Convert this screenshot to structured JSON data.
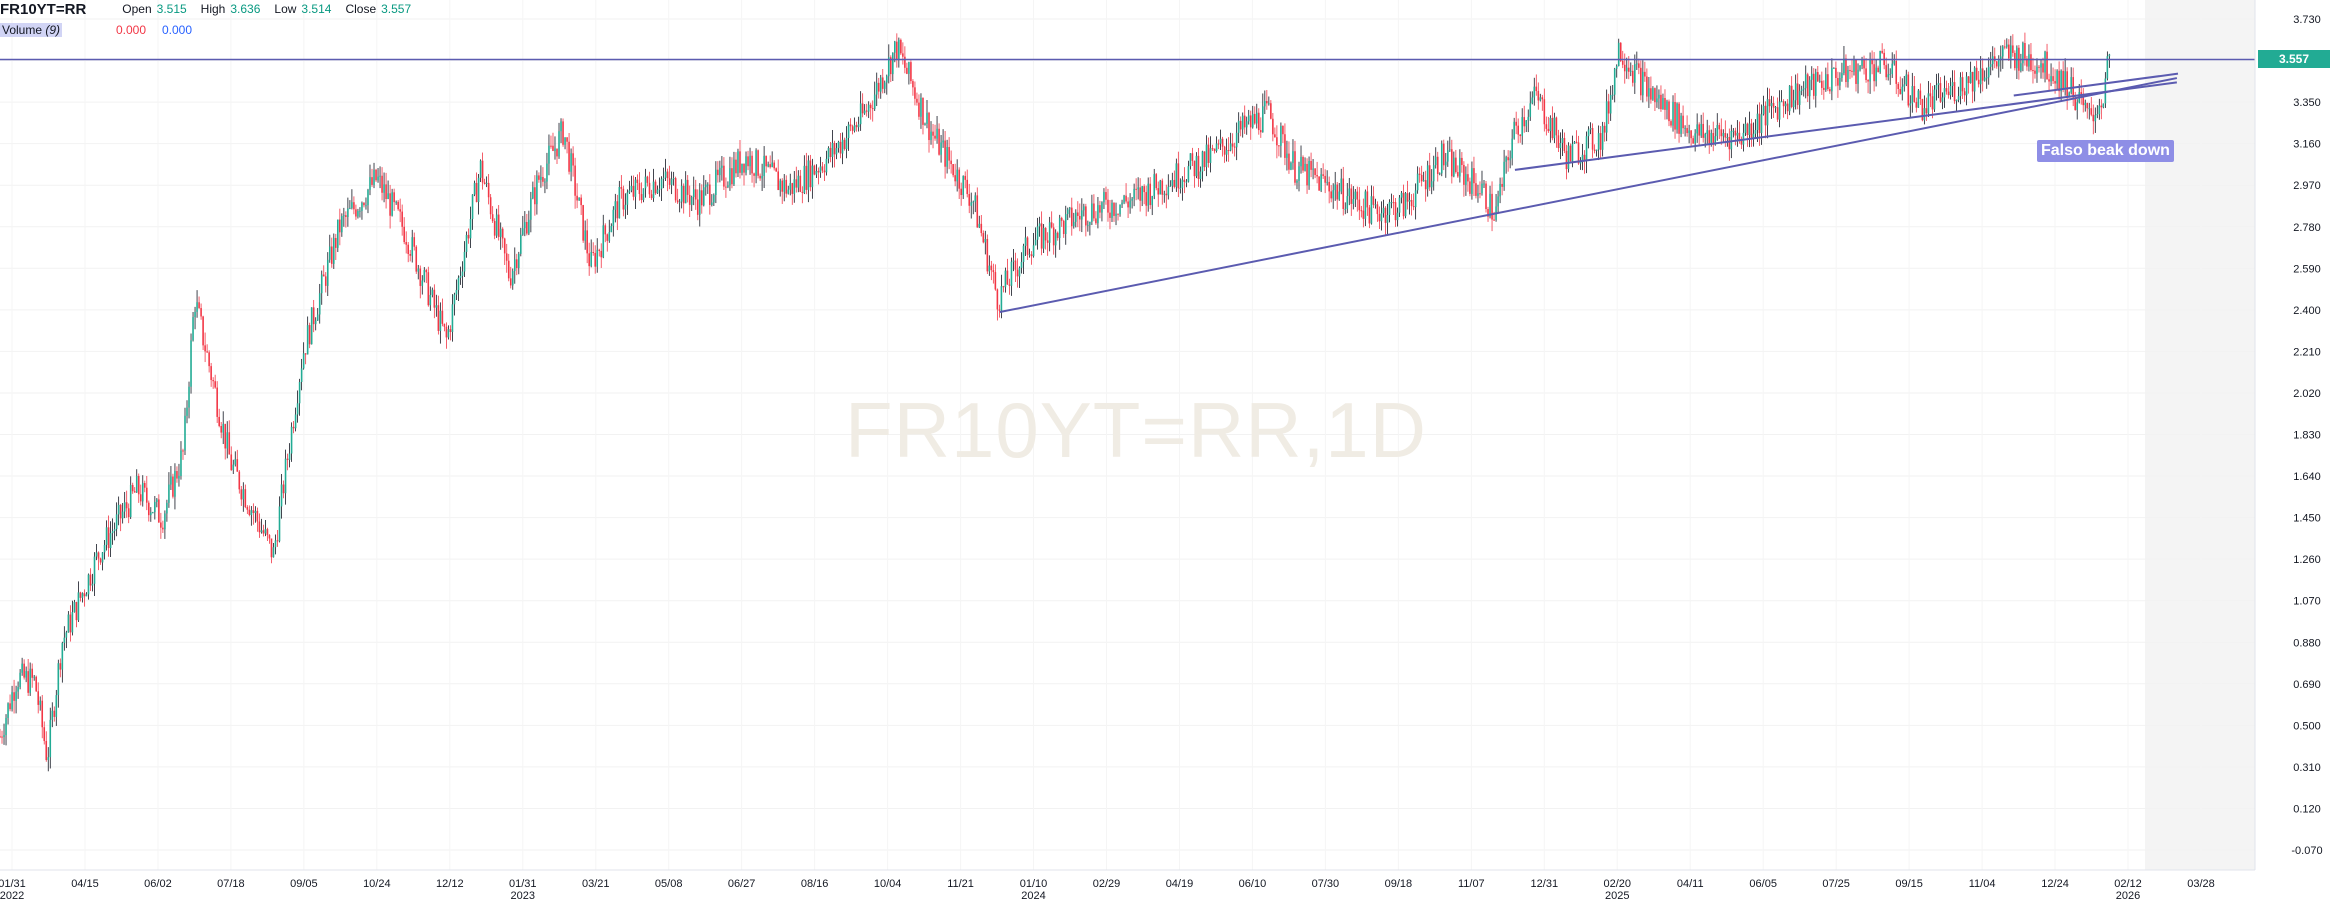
{
  "legend": {
    "symbol": "FR10YT=RR",
    "open_label": "Open",
    "open_value": "3.515",
    "high_label": "High",
    "high_value": "3.636",
    "low_label": "Low",
    "low_value": "3.514",
    "close_label": "Close",
    "close_value": "3.557"
  },
  "volume": {
    "label": "Volume",
    "param": "(9)",
    "value1": "0.000",
    "value2": "0.000"
  },
  "price_badge": "3.557",
  "watermark": "FR10YT=RR,1D",
  "annotation": "Falso beak down",
  "colors": {
    "up": "#22ab94",
    "down": "#f23645",
    "wick_dark": "#131722",
    "trendline": "#5b5bb0",
    "badge": "#22ab94"
  },
  "chart_data": {
    "type": "candlestick",
    "title": "FR10YT=RR,1D",
    "ylim": [
      -0.07,
      3.73
    ],
    "y_ticks": [
      "3.730",
      "3.540",
      "3.350",
      "3.160",
      "2.970",
      "2.780",
      "2.590",
      "2.400",
      "2.210",
      "2.020",
      "1.830",
      "1.640",
      "1.450",
      "1.260",
      "1.070",
      "0.880",
      "0.690",
      "0.500",
      "0.310",
      "0.120",
      "-0.070"
    ],
    "x_ticks": [
      {
        "label": "01/31",
        "year": "2022"
      },
      {
        "label": "04/15"
      },
      {
        "label": "06/02"
      },
      {
        "label": "07/18"
      },
      {
        "label": "09/05"
      },
      {
        "label": "10/24"
      },
      {
        "label": "12/12"
      },
      {
        "label": "01/31",
        "year": "2023"
      },
      {
        "label": "03/21"
      },
      {
        "label": "05/08"
      },
      {
        "label": "06/27"
      },
      {
        "label": "08/16"
      },
      {
        "label": "10/04"
      },
      {
        "label": "11/21"
      },
      {
        "label": "01/10",
        "year": "2024"
      },
      {
        "label": "02/29"
      },
      {
        "label": "04/19"
      },
      {
        "label": "06/10"
      },
      {
        "label": "07/30"
      },
      {
        "label": "09/18"
      },
      {
        "label": "11/07"
      },
      {
        "label": "12/31"
      },
      {
        "label": "02/20",
        "year": "2025"
      },
      {
        "label": "04/11"
      },
      {
        "label": "06/05"
      },
      {
        "label": "07/25"
      },
      {
        "label": "09/15"
      },
      {
        "label": "11/04"
      },
      {
        "label": "12/24"
      },
      {
        "label": "02/12",
        "year": "2026"
      },
      {
        "label": "03/28"
      }
    ],
    "price_path": [
      [
        0,
        0.45
      ],
      [
        0.0075,
        0.72
      ],
      [
        0.0155,
        0.7
      ],
      [
        0.021,
        0.35
      ],
      [
        0.0275,
        0.88
      ],
      [
        0.0445,
        1.3
      ],
      [
        0.061,
        1.58
      ],
      [
        0.072,
        1.45
      ],
      [
        0.0815,
        1.75
      ],
      [
        0.0865,
        2.45
      ],
      [
        0.1025,
        1.7
      ],
      [
        0.1215,
        1.28
      ],
      [
        0.1345,
        2.2
      ],
      [
        0.151,
        2.78
      ],
      [
        0.1675,
        3.0
      ],
      [
        0.1805,
        2.75
      ],
      [
        0.1985,
        2.26
      ],
      [
        0.2135,
        3.05
      ],
      [
        0.2265,
        2.55
      ],
      [
        0.2395,
        3.0
      ],
      [
        0.2505,
        3.22
      ],
      [
        0.2625,
        2.6
      ],
      [
        0.2755,
        2.9
      ],
      [
        0.2935,
        3.0
      ],
      [
        0.3105,
        2.9
      ],
      [
        0.3315,
        3.1
      ],
      [
        0.3505,
        2.95
      ],
      [
        0.3685,
        3.1
      ],
      [
        0.3845,
        3.3
      ],
      [
        0.3985,
        3.6
      ],
      [
        0.4145,
        3.2
      ],
      [
        0.4325,
        2.9
      ],
      [
        0.4435,
        2.45
      ],
      [
        0.4575,
        2.7
      ],
      [
        0.4825,
        2.85
      ],
      [
        0.5025,
        2.9
      ],
      [
        0.5205,
        3.0
      ],
      [
        0.5385,
        3.1
      ],
      [
        0.5515,
        3.22
      ],
      [
        0.5635,
        3.3
      ],
      [
        0.5755,
        3.05
      ],
      [
        0.5935,
        2.95
      ],
      [
        0.6105,
        2.85
      ],
      [
        0.6245,
        2.88
      ],
      [
        0.6405,
        3.1
      ],
      [
        0.6585,
        2.95
      ],
      [
        0.6645,
        2.83
      ],
      [
        0.6725,
        3.2
      ],
      [
        0.6825,
        3.38
      ],
      [
        0.6965,
        3.1
      ],
      [
        0.7125,
        3.2
      ],
      [
        0.7195,
        3.6
      ],
      [
        0.7325,
        3.4
      ],
      [
        0.7535,
        3.2
      ],
      [
        0.7735,
        3.2
      ],
      [
        0.7955,
        3.38
      ],
      [
        0.8185,
        3.48
      ],
      [
        0.8375,
        3.52
      ],
      [
        0.8545,
        3.33
      ],
      [
        0.8715,
        3.43
      ],
      [
        0.8925,
        3.57
      ],
      [
        0.9075,
        3.53
      ],
      [
        0.9195,
        3.43
      ],
      [
        0.9285,
        3.27
      ],
      [
        0.9345,
        3.37
      ],
      [
        0.9375,
        3.557
      ]
    ],
    "trendlines": [
      {
        "from": [
          0.4444,
          2.39
        ],
        "to": [
          0.9675,
          3.46
        ]
      },
      {
        "from": [
          0.6733,
          3.04
        ],
        "to": [
          0.9675,
          3.44
        ]
      },
      {
        "from": [
          0.895,
          3.38
        ],
        "to": [
          0.968,
          3.48
        ]
      }
    ],
    "resistance": 3.545
  }
}
